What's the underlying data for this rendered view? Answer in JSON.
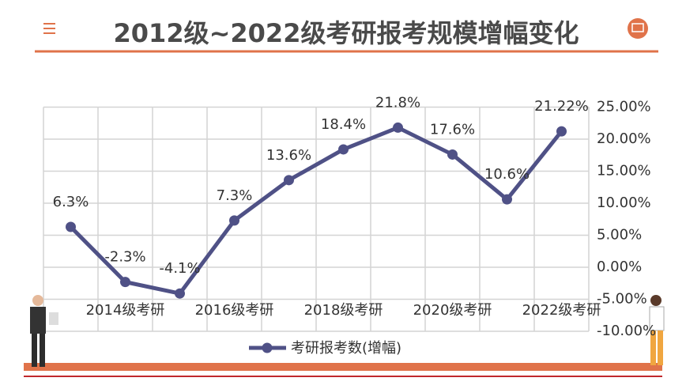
{
  "chart_data": {
    "type": "line",
    "title": "2012级~2022级考研报考规模增幅变化",
    "categories": [
      null,
      "2014级考研",
      null,
      "2016级考研",
      null,
      "2018级考研",
      null,
      "2020级考研",
      null,
      "2022级考研"
    ],
    "series": [
      {
        "name": "考研报考数(增幅)",
        "color": "#4f5186",
        "values": [
          6.3,
          -2.3,
          -4.1,
          7.3,
          13.6,
          18.4,
          21.8,
          17.6,
          10.6,
          21.22
        ],
        "value_labels": [
          "6.3%",
          "-2.3%",
          "-4.1%",
          "7.3%",
          "13.6%",
          "18.4%",
          "21.8%",
          "17.6%",
          "10.6%",
          "21.22%"
        ]
      }
    ],
    "ylim": [
      -10,
      25
    ],
    "yticks": [
      {
        "value": -10,
        "label": "-10.00%"
      },
      {
        "value": -5,
        "label": "-5.00%"
      },
      {
        "value": 0,
        "label": "0.00%"
      },
      {
        "value": 5,
        "label": "5.00%"
      },
      {
        "value": 10,
        "label": "10.00%"
      },
      {
        "value": 15,
        "label": "15.00%"
      },
      {
        "value": 20,
        "label": "20.00%"
      },
      {
        "value": 25,
        "label": "25.00%"
      }
    ],
    "grid": true
  }
}
